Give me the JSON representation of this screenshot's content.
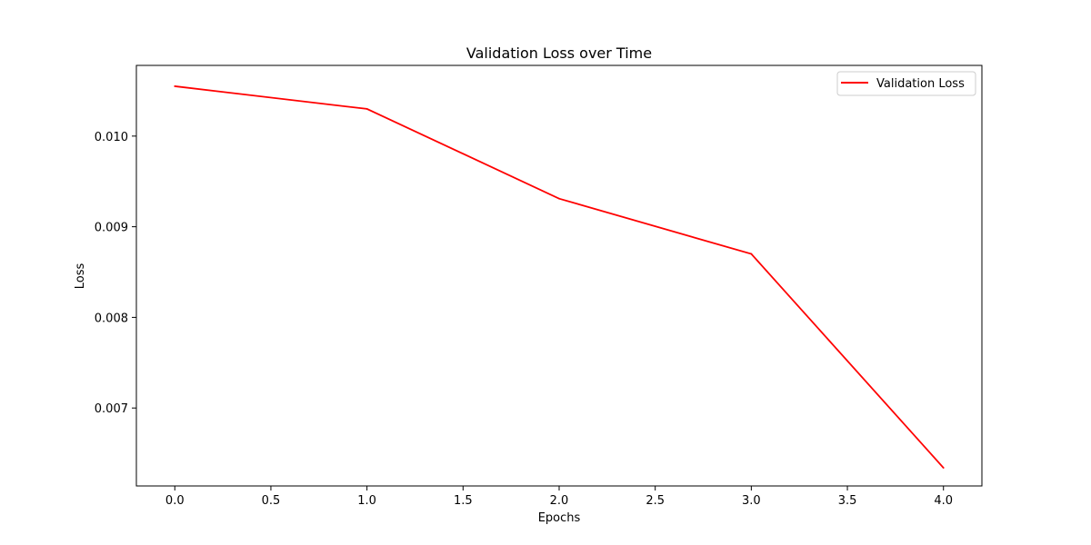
{
  "chart_data": {
    "type": "line",
    "title": "Validation Loss over Time",
    "xlabel": "Epochs",
    "ylabel": "Loss",
    "xlim": [
      -0.2,
      4.2
    ],
    "ylim": [
      0.00614,
      0.01078
    ],
    "x_ticks": [
      0.0,
      0.5,
      1.0,
      1.5,
      2.0,
      2.5,
      3.0,
      3.5,
      4.0
    ],
    "x_tick_labels": [
      "0.0",
      "0.5",
      "1.0",
      "1.5",
      "2.0",
      "2.5",
      "3.0",
      "3.5",
      "4.0"
    ],
    "y_ticks": [
      0.007,
      0.008,
      0.009,
      0.01
    ],
    "y_tick_labels": [
      "0.007",
      "0.008",
      "0.009",
      "0.010"
    ],
    "grid": false,
    "legend_position": "top-right",
    "series": [
      {
        "name": "Validation Loss",
        "color": "#ff0000",
        "x": [
          0,
          1,
          2,
          3,
          4
        ],
        "y": [
          0.01055,
          0.0103,
          0.00931,
          0.0087,
          0.00634
        ]
      }
    ]
  }
}
